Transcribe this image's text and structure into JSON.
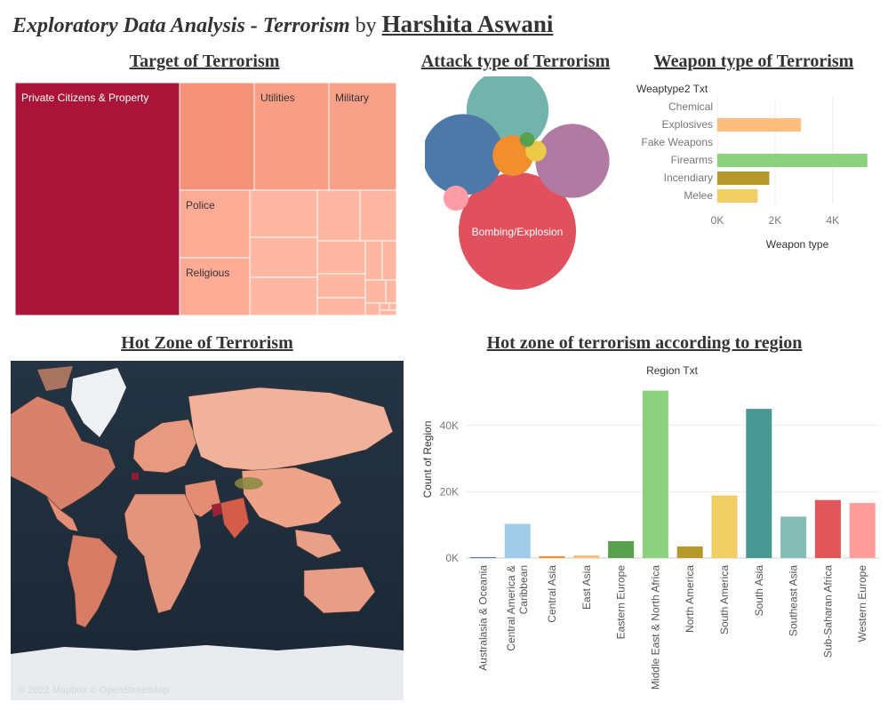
{
  "header": {
    "title_italic": "Exploratory Data Analysis - Terrorism",
    "title_by": " by ",
    "title_author": "Harshita Aswani"
  },
  "sections": {
    "target": "Target of Terrorism",
    "attack": "Attack type of Terrorism",
    "weapon": "Weapon type of Terrorism",
    "hotzone": "Hot Zone of Terrorism",
    "region": "Hot zone of terrorism according to region"
  },
  "map": {
    "credit": "© 2022 Mapbox © OpenStreetMap"
  },
  "chart_data": [
    {
      "type": "treemap",
      "title": "Target of Terrorism",
      "items": [
        {
          "label": "Private Citizens & Property",
          "value": 43500,
          "color": "#ab1439"
        },
        {
          "label": "",
          "value": 10000,
          "color": "#f6917a"
        },
        {
          "label": "Utilities",
          "value": 9500,
          "color": "#fa9f86"
        },
        {
          "label": "Military",
          "value": 8700,
          "color": "#f9a089"
        },
        {
          "label": "Police",
          "value": 8100,
          "color": "#fdab95"
        },
        {
          "label": "Religious",
          "value": 7900,
          "color": "#fdab95"
        }
      ],
      "color_palette": [
        "#ab1439",
        "#f6917a",
        "#fa9f86",
        "#fdab95",
        "#fdb7a2"
      ]
    },
    {
      "type": "bubble",
      "title": "Attack type of Terrorism",
      "items": [
        {
          "label": "Bombing/Explosion",
          "value": 88000,
          "color": "#e0505d"
        },
        {
          "label": "",
          "value": 43000,
          "color": "#72b3ad"
        },
        {
          "label": "",
          "value": 42000,
          "color": "#4e78a8"
        },
        {
          "label": "",
          "value": 35000,
          "color": "#b07aa2"
        },
        {
          "label": "",
          "value": 10500,
          "color": "#f28e2c"
        },
        {
          "label": "",
          "value": 4000,
          "color": "#ff9da7"
        },
        {
          "label": "",
          "value": 2800,
          "color": "#edc948"
        },
        {
          "label": "",
          "value": 1400,
          "color": "#59a14f"
        }
      ]
    },
    {
      "type": "bar",
      "orientation": "horizontal",
      "title": "Weapon type of Terrorism",
      "legend_header": "Weaptype2 Txt",
      "xlabel": "Weapon type",
      "categories": [
        "Chemical",
        "Explosives",
        "Fake Weapons",
        "Firearms",
        "Incendiary",
        "Melee"
      ],
      "values": [
        0,
        2900,
        0,
        5200,
        1800,
        1400
      ],
      "colors": [
        "#cccccc",
        "#ffbe7d",
        "#cccccc",
        "#8cd17d",
        "#b6992d",
        "#f1ce63"
      ],
      "xticks": [
        "0K",
        "2K",
        "4K"
      ],
      "xlim": [
        0,
        5300
      ]
    },
    {
      "type": "bar",
      "title": "Hot zone of terrorism according to region",
      "legend_header": "Region Txt",
      "ylabel": "Count of Region",
      "categories": [
        "Australasia & Oceania",
        "Central America & Caribbean",
        "Central Asia",
        "East Asia",
        "Eastern Europe",
        "Middle East & North Africa",
        "North America",
        "South America",
        "South Asia",
        "Southeast Asia",
        "Sub-Saharan Africa",
        "Western Europe"
      ],
      "category_lines": [
        [
          "Australasia & Oceania"
        ],
        [
          "Central America &",
          "Caribbean"
        ],
        [
          "Central Asia"
        ],
        [
          "East Asia"
        ],
        [
          "Eastern Europe"
        ],
        [
          "Middle East & North Africa"
        ],
        [
          "North America"
        ],
        [
          "South America"
        ],
        [
          "South Asia"
        ],
        [
          "Southeast Asia"
        ],
        [
          "Sub-Saharan Africa"
        ],
        [
          "Western Europe"
        ]
      ],
      "values": [
        280,
        10300,
        560,
        800,
        5100,
        50500,
        3500,
        18900,
        45000,
        12500,
        17500,
        16600
      ],
      "colors": [
        "#4e79a7",
        "#a0cbe8",
        "#f28e2b",
        "#ffbe7d",
        "#59a14f",
        "#8cd17d",
        "#b6992d",
        "#f1ce63",
        "#499894",
        "#86bcb6",
        "#e15759",
        "#ff9d9a"
      ],
      "yticks": [
        "0K",
        "20K",
        "40K"
      ],
      "ylim": [
        0,
        52000
      ]
    }
  ]
}
